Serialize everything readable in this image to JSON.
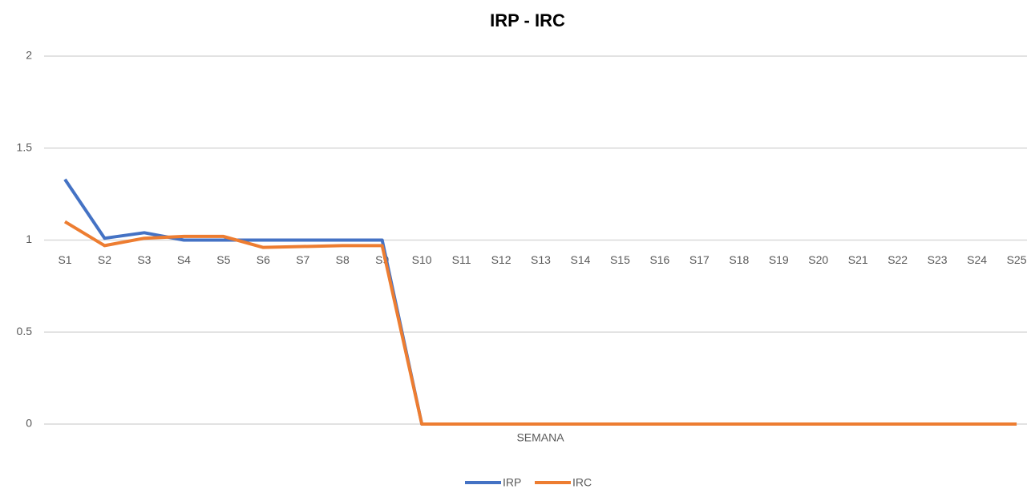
{
  "chart_data": {
    "type": "line",
    "title": "IRP - IRC",
    "x_label": "SEMANA",
    "categories": [
      "S1",
      "S2",
      "S3",
      "S4",
      "S5",
      "S6",
      "S7",
      "S8",
      "S9",
      "S10",
      "S11",
      "S12",
      "S13",
      "S14",
      "S15",
      "S16",
      "S17",
      "S18",
      "S19",
      "S20",
      "S21",
      "S22",
      "S23",
      "S24",
      "S25"
    ],
    "series": [
      {
        "name": "IRP",
        "color": "#4472c4",
        "values": [
          1.33,
          1.01,
          1.04,
          1.0,
          1.0,
          1.0,
          1.0,
          1.0,
          1.0,
          0,
          0,
          0,
          0,
          0,
          0,
          0,
          0,
          0,
          0,
          0,
          0,
          0,
          0,
          0,
          0
        ]
      },
      {
        "name": "IRC",
        "color": "#ed7d31",
        "values": [
          1.1,
          0.97,
          1.01,
          1.02,
          1.02,
          0.96,
          0.965,
          0.97,
          0.97,
          0,
          0,
          0,
          0,
          0,
          0,
          0,
          0,
          0,
          0,
          0,
          0,
          0,
          0,
          0,
          0
        ]
      }
    ],
    "ylim": [
      0,
      2
    ],
    "yticks": [
      0,
      0.5,
      1,
      1.5,
      2
    ],
    "x_axis_at": 1,
    "grid": true,
    "legend": "bottom"
  }
}
